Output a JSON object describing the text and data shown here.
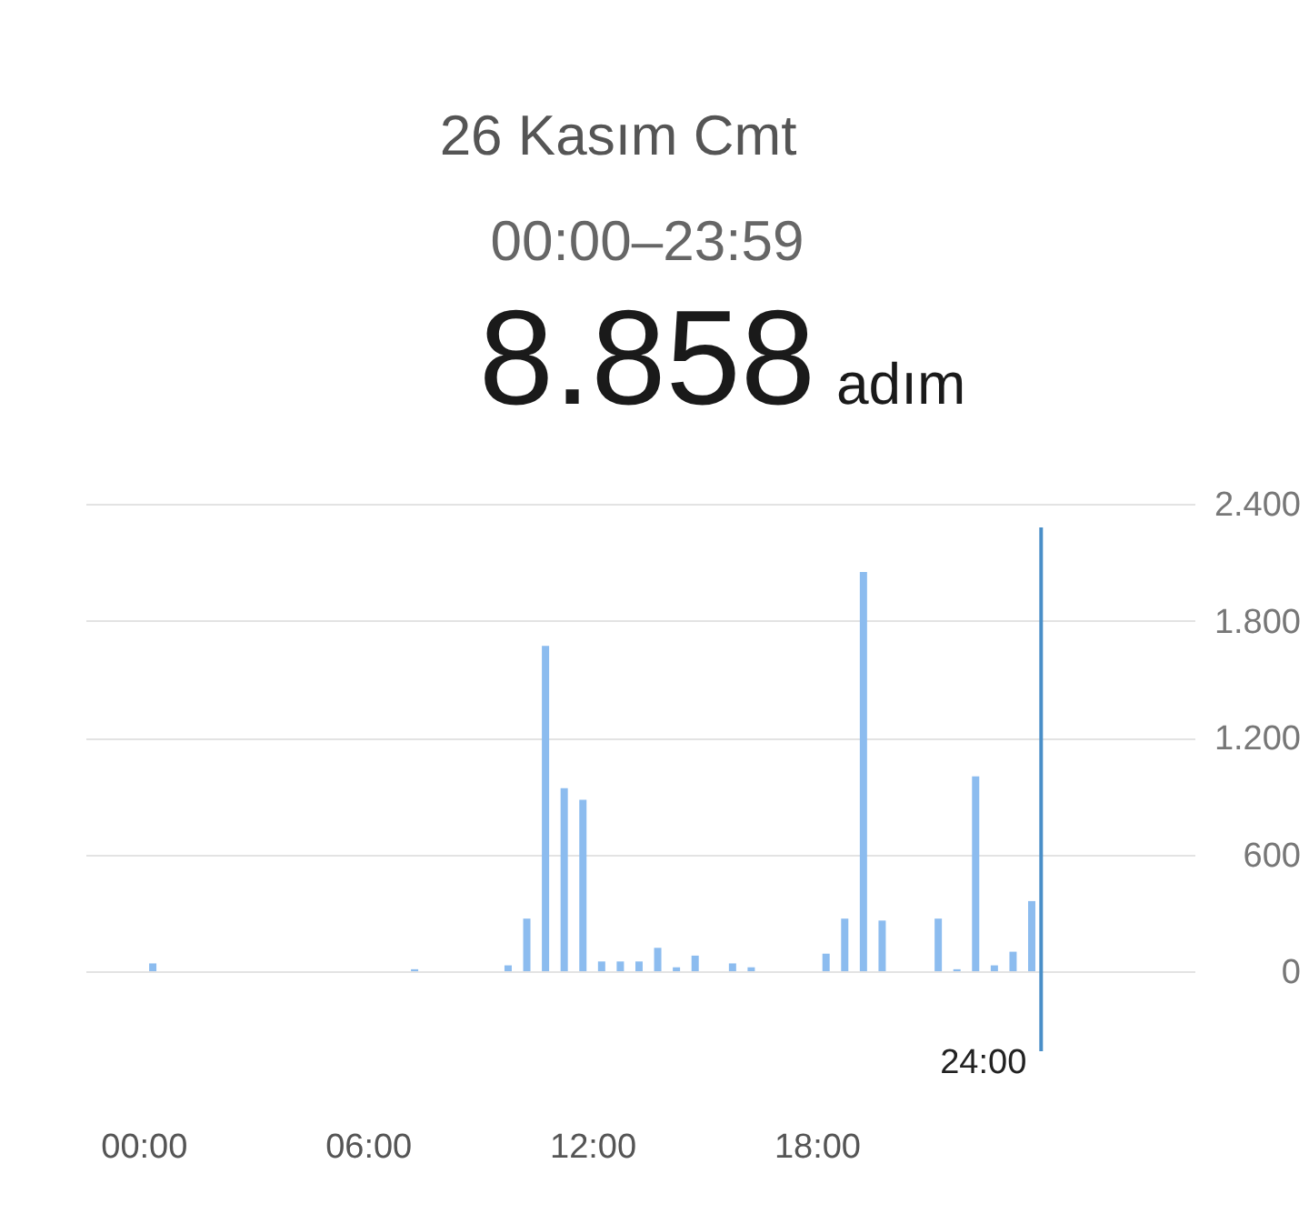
{
  "chart_data": {
    "type": "bar",
    "title": "26 Kasım Cmt",
    "subtitle": "00:00–23:59",
    "annotations": [
      "8.858",
      "adım"
    ],
    "x": [
      0.25,
      7.25,
      9.75,
      10.25,
      10.75,
      11.25,
      11.75,
      12.25,
      12.75,
      13.25,
      13.75,
      14.25,
      14.75,
      15.75,
      16.25,
      18.25,
      18.75,
      19.25,
      19.75,
      21.25,
      21.75,
      22.25,
      22.75,
      23.25,
      23.75
    ],
    "values": [
      40,
      10,
      30,
      270,
      1670,
      940,
      880,
      50,
      50,
      50,
      120,
      20,
      80,
      40,
      20,
      90,
      270,
      2050,
      260,
      270,
      10,
      1000,
      30,
      100,
      360
    ],
    "color": "#8cbcef",
    "xlim": [
      -1.55,
      28.1
    ],
    "xticks": [
      {
        "value": 0,
        "label": "00:00"
      },
      {
        "value": 6,
        "label": "06:00"
      },
      {
        "value": 12,
        "label": "12:00"
      },
      {
        "value": 18,
        "label": "18:00"
      }
    ],
    "ylim": [
      0,
      2400
    ],
    "yticks": [
      0,
      600,
      {
        "value": 1200,
        "label": "1.200"
      },
      {
        "value": 1800,
        "label": "1.800"
      },
      {
        "value": 2400,
        "label": "2.400"
      }
    ],
    "grid": "y",
    "ref_lines": [
      {
        "axis": "x",
        "value": 24,
        "label": "24:00",
        "color": "#4a8fc8"
      }
    ]
  }
}
